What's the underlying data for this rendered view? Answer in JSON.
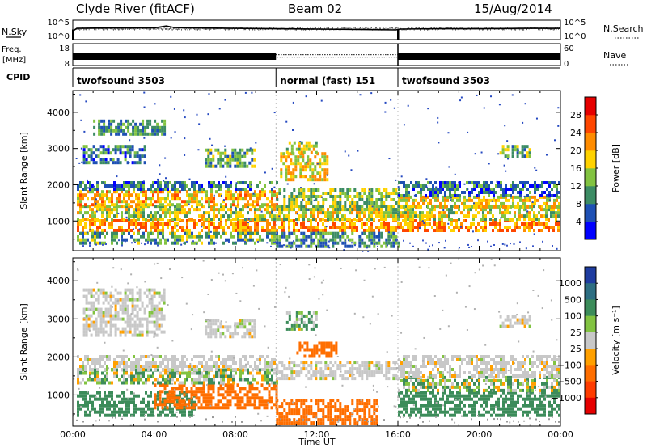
{
  "header": {
    "station": "Clyde River (fitACF)",
    "beam": "Beam 02",
    "date": "15/Aug/2014"
  },
  "strip_labels": {
    "nsky": "N.Sky",
    "freq_line1": "Freq.",
    "freq_line2": "[MHz]",
    "cpid": "CPID",
    "nsearch": "N.Search",
    "nave": "Nave",
    "nsky_top": "10^5",
    "nsky_bottom": "10^0",
    "nsearch_top": "10^5",
    "nsearch_bottom": "10^0",
    "freq_top": "18",
    "freq_bottom": "8",
    "nave_top": "60",
    "nave_bottom": "0"
  },
  "chart_data": [
    {
      "type": "line",
      "name": "noise-strip",
      "x_range": [
        0,
        24
      ],
      "segments": [
        {
          "x": [
            0.0,
            0.2,
            2,
            4,
            4.6,
            5,
            6,
            8,
            10,
            12,
            14,
            15.9,
            16.1,
            18,
            20,
            22,
            24
          ],
          "y": [
            2.2,
            2.9,
            3.0,
            3.0,
            3.5,
            3.1,
            3.0,
            2.9,
            2.8,
            2.7,
            2.6,
            2.5,
            2.7,
            2.8,
            2.8,
            2.9,
            2.9
          ]
        }
      ],
      "marker_x": [
        0.0,
        16.0
      ]
    },
    {
      "type": "line",
      "name": "frequency-strip",
      "x_range": [
        0,
        24
      ],
      "cpid_segments": [
        {
          "start": 0,
          "end": 10,
          "label": "twofsound 3503"
        },
        {
          "start": 10,
          "end": 16,
          "label": "normal (fast) 151"
        },
        {
          "start": 16,
          "end": 24,
          "label": "twofsound 3503"
        }
      ]
    },
    {
      "type": "heatmap",
      "name": "power",
      "x_range": [
        0,
        24
      ],
      "ylabel": "Slant Range [km]",
      "ylim": [
        180,
        4600
      ],
      "y_ticks": [
        1000,
        2000,
        3000,
        4000
      ],
      "colorbar_label": "Power [dB]",
      "colorbar_ticks": [
        "4",
        "8",
        "12",
        "16",
        "20",
        "24",
        "28"
      ],
      "colorbar_colors": [
        "#0000ff",
        "#1e50b4",
        "#3c8c64",
        "#82c341",
        "#ffd200",
        "#ff8c00",
        "#ff4600",
        "#e60000"
      ],
      "bands": [
        {
          "t0": 0.2,
          "t1": 23.9,
          "r0": 700,
          "r1": 1050,
          "p": 22
        },
        {
          "t0": 0.2,
          "t1": 23.9,
          "r0": 1050,
          "r1": 1450,
          "p": 16
        },
        {
          "t0": 0.2,
          "t1": 10,
          "r0": 1450,
          "r1": 1850,
          "p": 20
        },
        {
          "t0": 10,
          "t1": 16,
          "r0": 1350,
          "r1": 1900,
          "p": 14
        },
        {
          "t0": 16,
          "t1": 23.9,
          "r0": 1350,
          "r1": 1700,
          "p": 18
        },
        {
          "t0": 16,
          "t1": 23.9,
          "r0": 1700,
          "r1": 2100,
          "p": 8
        },
        {
          "t0": 0.2,
          "t1": 10,
          "r0": 1850,
          "r1": 2100,
          "p": 8
        },
        {
          "t0": 10,
          "t1": 16,
          "r0": 300,
          "r1": 700,
          "p": 10
        },
        {
          "t0": 0.2,
          "t1": 10,
          "r0": 400,
          "r1": 700,
          "p": 12
        },
        {
          "t0": 0.5,
          "t1": 3.5,
          "r0": 2600,
          "r1": 3100,
          "p": 8
        },
        {
          "t0": 1,
          "t1": 4.5,
          "r0": 3400,
          "r1": 3800,
          "p": 10
        },
        {
          "t0": 6.5,
          "t1": 9,
          "r0": 2500,
          "r1": 3000,
          "p": 12
        },
        {
          "t0": 10.2,
          "t1": 12.5,
          "r0": 2100,
          "r1": 2900,
          "p": 18
        },
        {
          "t0": 10.5,
          "t1": 12,
          "r0": 2900,
          "r1": 3200,
          "p": 16
        },
        {
          "t0": 21,
          "t1": 22.5,
          "r0": 2800,
          "r1": 3100,
          "p": 12
        }
      ]
    },
    {
      "type": "heatmap",
      "name": "velocity",
      "x_range": [
        0,
        24
      ],
      "xlabel": "Time UT",
      "ylabel": "Slant Range [km]",
      "ylim": [
        180,
        4600
      ],
      "y_ticks": [
        1000,
        2000,
        3000,
        4000
      ],
      "x_ticks": [
        "00:00",
        "04:00",
        "08:00",
        "12:00",
        "16:00",
        "20:00",
        "00:00"
      ],
      "colorbar_label": "Velocity [m s⁻¹]",
      "colorbar_ticks": [
        "1000",
        "500",
        "100",
        "25",
        "−25",
        "−100",
        "−500",
        "−1000"
      ],
      "colorbar_colors": [
        "#1e3ca0",
        "#2d6e82",
        "#3c8c5a",
        "#82c341",
        "#c8c8c8",
        "#ffa000",
        "#ff6e00",
        "#ff3c00",
        "#e60000"
      ],
      "bands": [
        {
          "t0": 0.2,
          "t1": 6,
          "r0": 500,
          "r1": 1100,
          "v": 300
        },
        {
          "t0": 4,
          "t1": 10,
          "r0": 700,
          "r1": 1300,
          "v": -300
        },
        {
          "t0": 0.2,
          "t1": 10,
          "r0": 1300,
          "r1": 1700,
          "v": 80
        },
        {
          "t0": 0.2,
          "t1": 10,
          "r0": 1700,
          "r1": 2050,
          "v": 0
        },
        {
          "t0": 10,
          "t1": 16,
          "r0": 1400,
          "r1": 1900,
          "v": 0
        },
        {
          "t0": 10,
          "t1": 15,
          "r0": 300,
          "r1": 900,
          "v": -300
        },
        {
          "t0": 11,
          "t1": 13,
          "r0": 2000,
          "r1": 2400,
          "v": -300
        },
        {
          "t0": 16,
          "t1": 23.9,
          "r0": 500,
          "r1": 1100,
          "v": 300
        },
        {
          "t0": 16,
          "t1": 23.9,
          "r0": 1100,
          "r1": 1500,
          "v": 80
        },
        {
          "t0": 16,
          "t1": 23.9,
          "r0": 1500,
          "r1": 2050,
          "v": 0
        },
        {
          "t0": 0.5,
          "t1": 4.5,
          "r0": 2600,
          "r1": 3800,
          "v": 0
        },
        {
          "t0": 6.5,
          "t1": 9,
          "r0": 2500,
          "r1": 3000,
          "v": 0
        },
        {
          "t0": 10.5,
          "t1": 12,
          "r0": 2700,
          "r1": 3200,
          "v": 120
        },
        {
          "t0": 21,
          "t1": 22.5,
          "r0": 2800,
          "r1": 3100,
          "v": 0
        }
      ]
    }
  ]
}
